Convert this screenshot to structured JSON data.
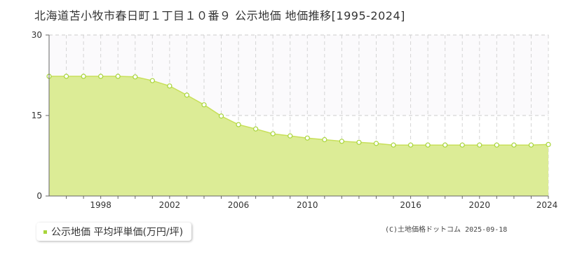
{
  "title": "北海道苫小牧市春日町１丁目１０番９ 公示地価 地価推移[1995-2024]",
  "legend": {
    "label": "公示地価 平均坪単価(万円/坪)"
  },
  "credit": "(C)土地価格ドットコム 2025-09-18",
  "colors": {
    "fill": "#dcec96",
    "line": "#c8e05a",
    "marker": "#a8d53a",
    "legend_swatch": "#a8d53a"
  },
  "chart_data": {
    "type": "area",
    "x": [
      1995,
      1996,
      1997,
      1998,
      1999,
      2000,
      2001,
      2002,
      2003,
      2004,
      2005,
      2006,
      2007,
      2008,
      2009,
      2010,
      2011,
      2012,
      2013,
      2014,
      2015,
      2016,
      2017,
      2018,
      2019,
      2020,
      2021,
      2022,
      2023,
      2024
    ],
    "series": [
      {
        "values": [
          22.3,
          22.3,
          22.3,
          22.3,
          22.3,
          22.2,
          21.5,
          20.5,
          18.8,
          17.0,
          14.9,
          13.3,
          12.5,
          11.6,
          11.2,
          10.8,
          10.5,
          10.2,
          10.0,
          9.8,
          9.5,
          9.5,
          9.5,
          9.5,
          9.5,
          9.5,
          9.5,
          9.5,
          9.5,
          9.6
        ]
      }
    ],
    "xlim": [
      1995,
      2024
    ],
    "ylim": [
      0,
      30
    ],
    "x_tick_labels": [
      "1998",
      "2002",
      "2006",
      "2010",
      "2016",
      "2020",
      "2024"
    ],
    "y_tick_labels": [
      "0",
      "15",
      "30"
    ],
    "grid": true
  }
}
